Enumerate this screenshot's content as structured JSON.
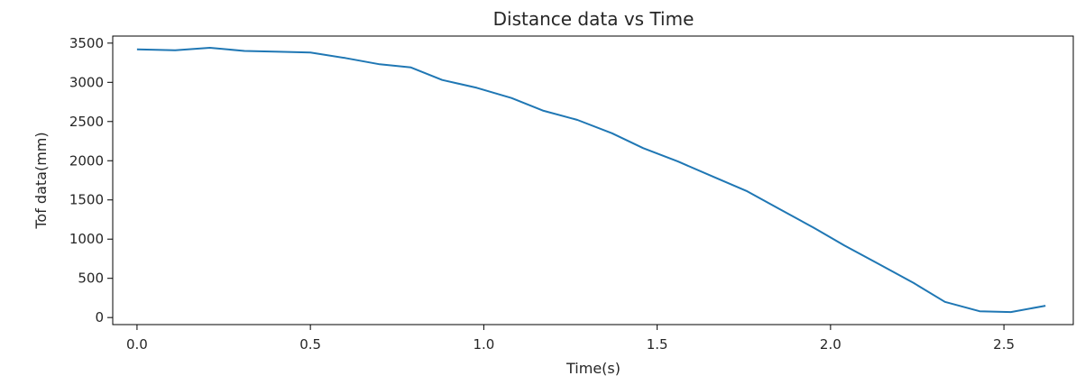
{
  "chart_data": {
    "type": "line",
    "title": "Distance data vs Time",
    "xlabel": "Time(s)",
    "ylabel": "Tof data(mm)",
    "xlim": [
      -0.07,
      2.7
    ],
    "ylim": [
      -90,
      3590
    ],
    "xticks": [
      0.0,
      0.5,
      1.0,
      1.5,
      2.0,
      2.5
    ],
    "xtick_labels": [
      "0.0",
      "0.5",
      "1.0",
      "1.5",
      "2.0",
      "2.5"
    ],
    "yticks": [
      0,
      500,
      1000,
      1500,
      2000,
      2500,
      3000,
      3500
    ],
    "ytick_labels": [
      "0",
      "500",
      "1000",
      "1500",
      "2000",
      "2500",
      "3000",
      "3500"
    ],
    "grid": false,
    "line_color": "#1f77b4",
    "series": [
      {
        "x": [
          0.0,
          0.11,
          0.21,
          0.31,
          0.41,
          0.5,
          0.6,
          0.7,
          0.79,
          0.88,
          0.98,
          1.08,
          1.17,
          1.27,
          1.37,
          1.46,
          1.56,
          1.66,
          1.76,
          1.85,
          1.95,
          2.04,
          2.14,
          2.24,
          2.33,
          2.43,
          2.52,
          2.62
        ],
        "y": [
          3420,
          3410,
          3440,
          3400,
          3390,
          3380,
          3310,
          3230,
          3190,
          3030,
          2930,
          2800,
          2640,
          2520,
          2350,
          2160,
          1990,
          1800,
          1610,
          1390,
          1150,
          920,
          680,
          440,
          200,
          80,
          70,
          150
        ]
      }
    ]
  }
}
